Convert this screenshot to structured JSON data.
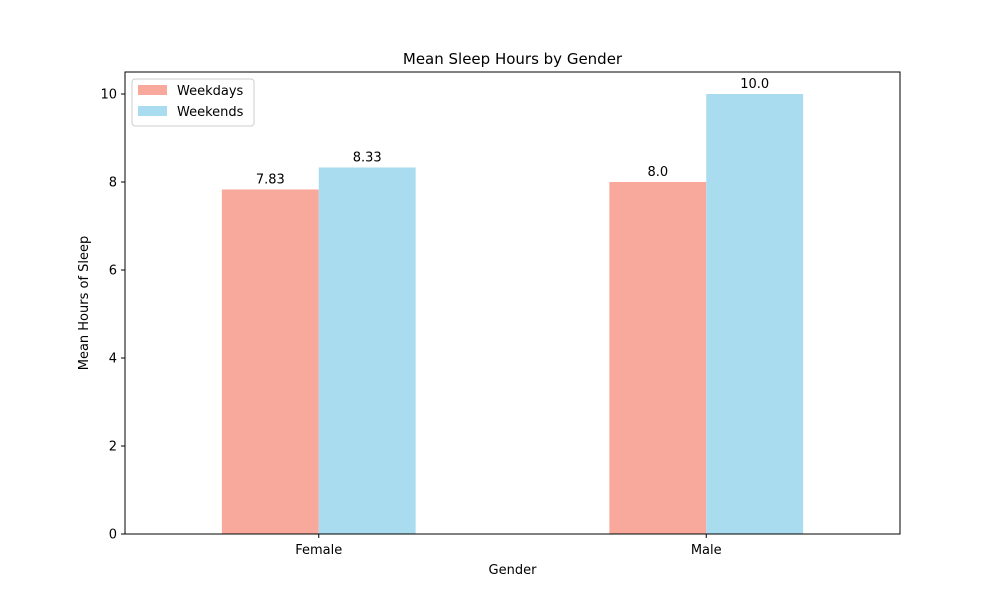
{
  "chart_data": {
    "type": "bar",
    "title": "Mean Sleep Hours by Gender",
    "xlabel": "Gender",
    "ylabel": "Mean Hours of Sleep",
    "categories": [
      "Female",
      "Male"
    ],
    "series": [
      {
        "name": "Weekdays",
        "values": [
          7.83,
          8.0
        ],
        "labels": [
          "7.83",
          "8.0"
        ],
        "color": "#f9a89c"
      },
      {
        "name": "Weekends",
        "values": [
          8.33,
          10.0
        ],
        "labels": [
          "8.33",
          "10.0"
        ],
        "color": "#a8dcee"
      }
    ],
    "ylim": [
      0,
      10.5
    ],
    "yticks": [
      0,
      2,
      4,
      6,
      8,
      10
    ],
    "ytick_labels": [
      "0",
      "2",
      "4",
      "6",
      "8",
      "10"
    ],
    "grid": false,
    "legend_position": "top-left"
  }
}
